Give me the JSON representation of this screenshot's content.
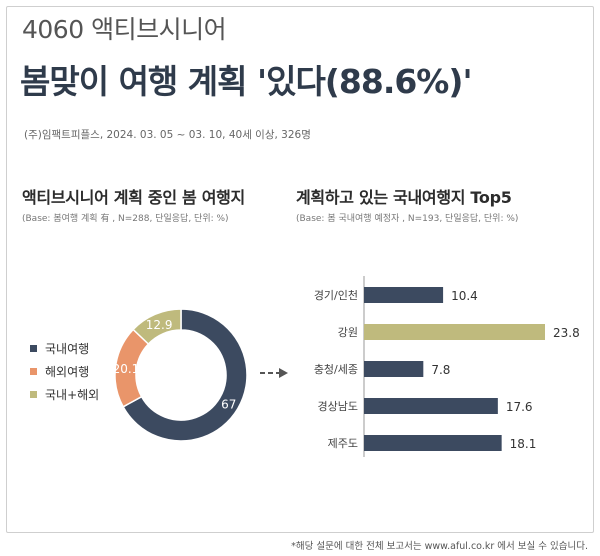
{
  "header": {
    "subtitle": "4060 액티브시니어",
    "title": "봄맞이 여행 계획 '있다(88.6%)'",
    "source": "(주)임팩트피플스, 2024. 03. 05 ~ 03. 10, 40세 이상, 326명"
  },
  "left": {
    "title": "액티브시니어 계획 중인 봄 여행지",
    "base": "(Base: 봄여행 계획 有 , N=288, 단일응답, 단위: %)"
  },
  "right": {
    "title": "계획하고 있는 국내여행지 Top5",
    "base": "(Base: 봄 국내여행 예정자 , N=193, 단일응답, 단위: %)"
  },
  "footnote": "*해당 설문에 대한 전체 보고서는 www.aful.co.kr 에서 보실 수 있습니다.",
  "chart_data": [
    {
      "type": "pie",
      "donut": true,
      "labels": [
        "국내여행",
        "해외여행",
        "국내+해외"
      ],
      "values": [
        67,
        20.1,
        12.9
      ],
      "value_labels": [
        "67",
        "20.1",
        "12.9"
      ],
      "colors": [
        "#3c4a60",
        "#e9956a",
        "#bfba7d"
      ],
      "legend": "left"
    },
    {
      "type": "bar",
      "orientation": "horizontal",
      "categories": [
        "경기/인천",
        "강원",
        "충청/세종",
        "경상남도",
        "제주도"
      ],
      "values": [
        10.4,
        23.8,
        7.8,
        17.6,
        18.1
      ],
      "value_labels": [
        "10.4",
        "23.8",
        "7.8",
        "17.6",
        "18.1"
      ],
      "colors": [
        "#3c4a60",
        "#bfba7d",
        "#3c4a60",
        "#3c4a60",
        "#3c4a60"
      ],
      "xlim": [
        0,
        23.8
      ]
    }
  ],
  "colors": {
    "accent_dark": "#3c4a60",
    "accent_orange": "#e9956a",
    "accent_olive": "#bfba7d"
  },
  "icons": {
    "arrow": "dashed-arrow-right-icon"
  }
}
